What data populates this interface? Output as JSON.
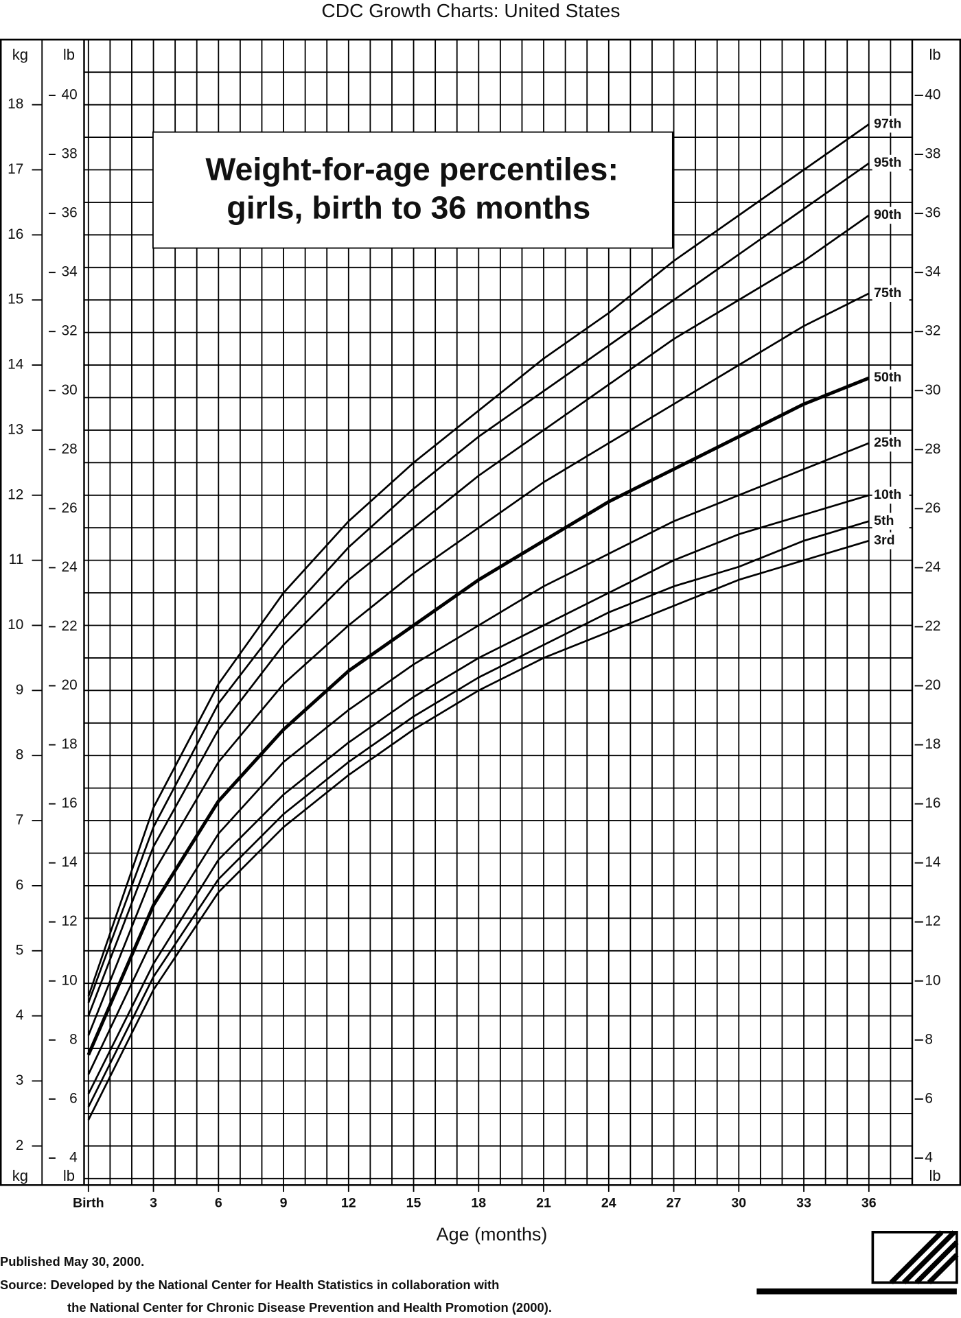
{
  "header": "CDC Growth Charts: United States",
  "chart_data": {
    "type": "line",
    "title": [
      "Weight-for-age percentiles:",
      "girls, birth to 36 months"
    ],
    "x_label": "Age (months)",
    "y_label_top": "kg",
    "y_label_bottom": "kg",
    "y2_label_top": "lb",
    "y2_label_bottom": "lb",
    "x": [
      0,
      3,
      6,
      9,
      12,
      15,
      18,
      21,
      24,
      27,
      30,
      33,
      36
    ],
    "xlim": [
      -0.2,
      38
    ],
    "xticks": [
      {
        "value": 0,
        "label": "Birth"
      },
      3,
      6,
      9,
      12,
      15,
      18,
      21,
      24,
      27,
      30,
      33,
      36
    ],
    "ylim": [
      1.4,
      19
    ],
    "yticks": [
      2,
      3,
      4,
      5,
      6,
      7,
      8,
      9,
      10,
      11,
      12,
      13,
      14,
      15,
      16,
      17,
      18
    ],
    "y2lim": [
      3.086,
      41.888
    ],
    "y2ticks": [
      4,
      6,
      8,
      10,
      12,
      14,
      16,
      18,
      20,
      22,
      24,
      26,
      28,
      30,
      32,
      34,
      36,
      38,
      40
    ],
    "x_minor_ticks": [
      0,
      1,
      2,
      3,
      4,
      5,
      6,
      7,
      8,
      9,
      10,
      11,
      12,
      13,
      14,
      15,
      16,
      17,
      18,
      19,
      20,
      21,
      22,
      23,
      24,
      25,
      26,
      27,
      28,
      29,
      30,
      31,
      32,
      33,
      34,
      35,
      36,
      37
    ],
    "y_minor_ticks": [
      1.5,
      2,
      2.5,
      3,
      3.5,
      4,
      4.5,
      5,
      5.5,
      6,
      6.5,
      7,
      7.5,
      8,
      8.5,
      9,
      9.5,
      10,
      10.5,
      11,
      11.5,
      12,
      12.5,
      13,
      13.5,
      14,
      14.5,
      15,
      15.5,
      16,
      16.5,
      17,
      17.5,
      18,
      18.5
    ],
    "grid": true,
    "series": [
      {
        "name": "97th",
        "color": "#000000",
        "values": [
          4.3,
          7.2,
          9.1,
          10.5,
          11.6,
          12.5,
          13.3,
          14.1,
          14.8,
          15.6,
          16.3,
          17.0,
          17.7
        ]
      },
      {
        "name": "95th",
        "color": "#000000",
        "values": [
          4.2,
          6.9,
          8.8,
          10.1,
          11.2,
          12.1,
          12.9,
          13.6,
          14.3,
          15.0,
          15.7,
          16.4,
          17.1
        ]
      },
      {
        "name": "90th",
        "color": "#000000",
        "values": [
          4.0,
          6.6,
          8.4,
          9.7,
          10.7,
          11.5,
          12.3,
          13.0,
          13.7,
          14.4,
          15.0,
          15.6,
          16.3
        ]
      },
      {
        "name": "75th",
        "color": "#000000",
        "values": [
          3.7,
          6.2,
          7.9,
          9.1,
          10.0,
          10.8,
          11.5,
          12.2,
          12.8,
          13.4,
          14.0,
          14.6,
          15.1
        ]
      },
      {
        "name": "50th",
        "color": "#000000",
        "values": [
          3.4,
          5.7,
          7.3,
          8.4,
          9.3,
          10.0,
          10.7,
          11.3,
          11.9,
          12.4,
          12.9,
          13.4,
          13.8
        ]
      },
      {
        "name": "25th",
        "color": "#000000",
        "values": [
          3.1,
          5.2,
          6.8,
          7.9,
          8.7,
          9.4,
          10.0,
          10.6,
          11.1,
          11.6,
          12.0,
          12.4,
          12.8
        ]
      },
      {
        "name": "10th",
        "color": "#000000",
        "values": [
          2.8,
          4.8,
          6.4,
          7.4,
          8.2,
          8.9,
          9.5,
          10.0,
          10.5,
          11.0,
          11.4,
          11.7,
          12.0
        ]
      },
      {
        "name": "5th",
        "color": "#000000",
        "values": [
          2.6,
          4.6,
          6.1,
          7.1,
          7.9,
          8.6,
          9.2,
          9.7,
          10.2,
          10.6,
          10.9,
          11.3,
          11.6
        ]
      },
      {
        "name": "3rd",
        "color": "#000000",
        "values": [
          2.4,
          4.4,
          5.9,
          6.9,
          7.7,
          8.4,
          9.0,
          9.5,
          9.9,
          10.3,
          10.7,
          11.0,
          11.3
        ]
      }
    ],
    "emphasized_series": "50th"
  },
  "footer": {
    "published": "Published May 30, 2000.",
    "source_line_1": "Source: Developed by the National Center for Health Statistics in collaboration with",
    "source_line_2": "the National Center for Chronic Disease Prevention and Health Promotion (2000)."
  }
}
